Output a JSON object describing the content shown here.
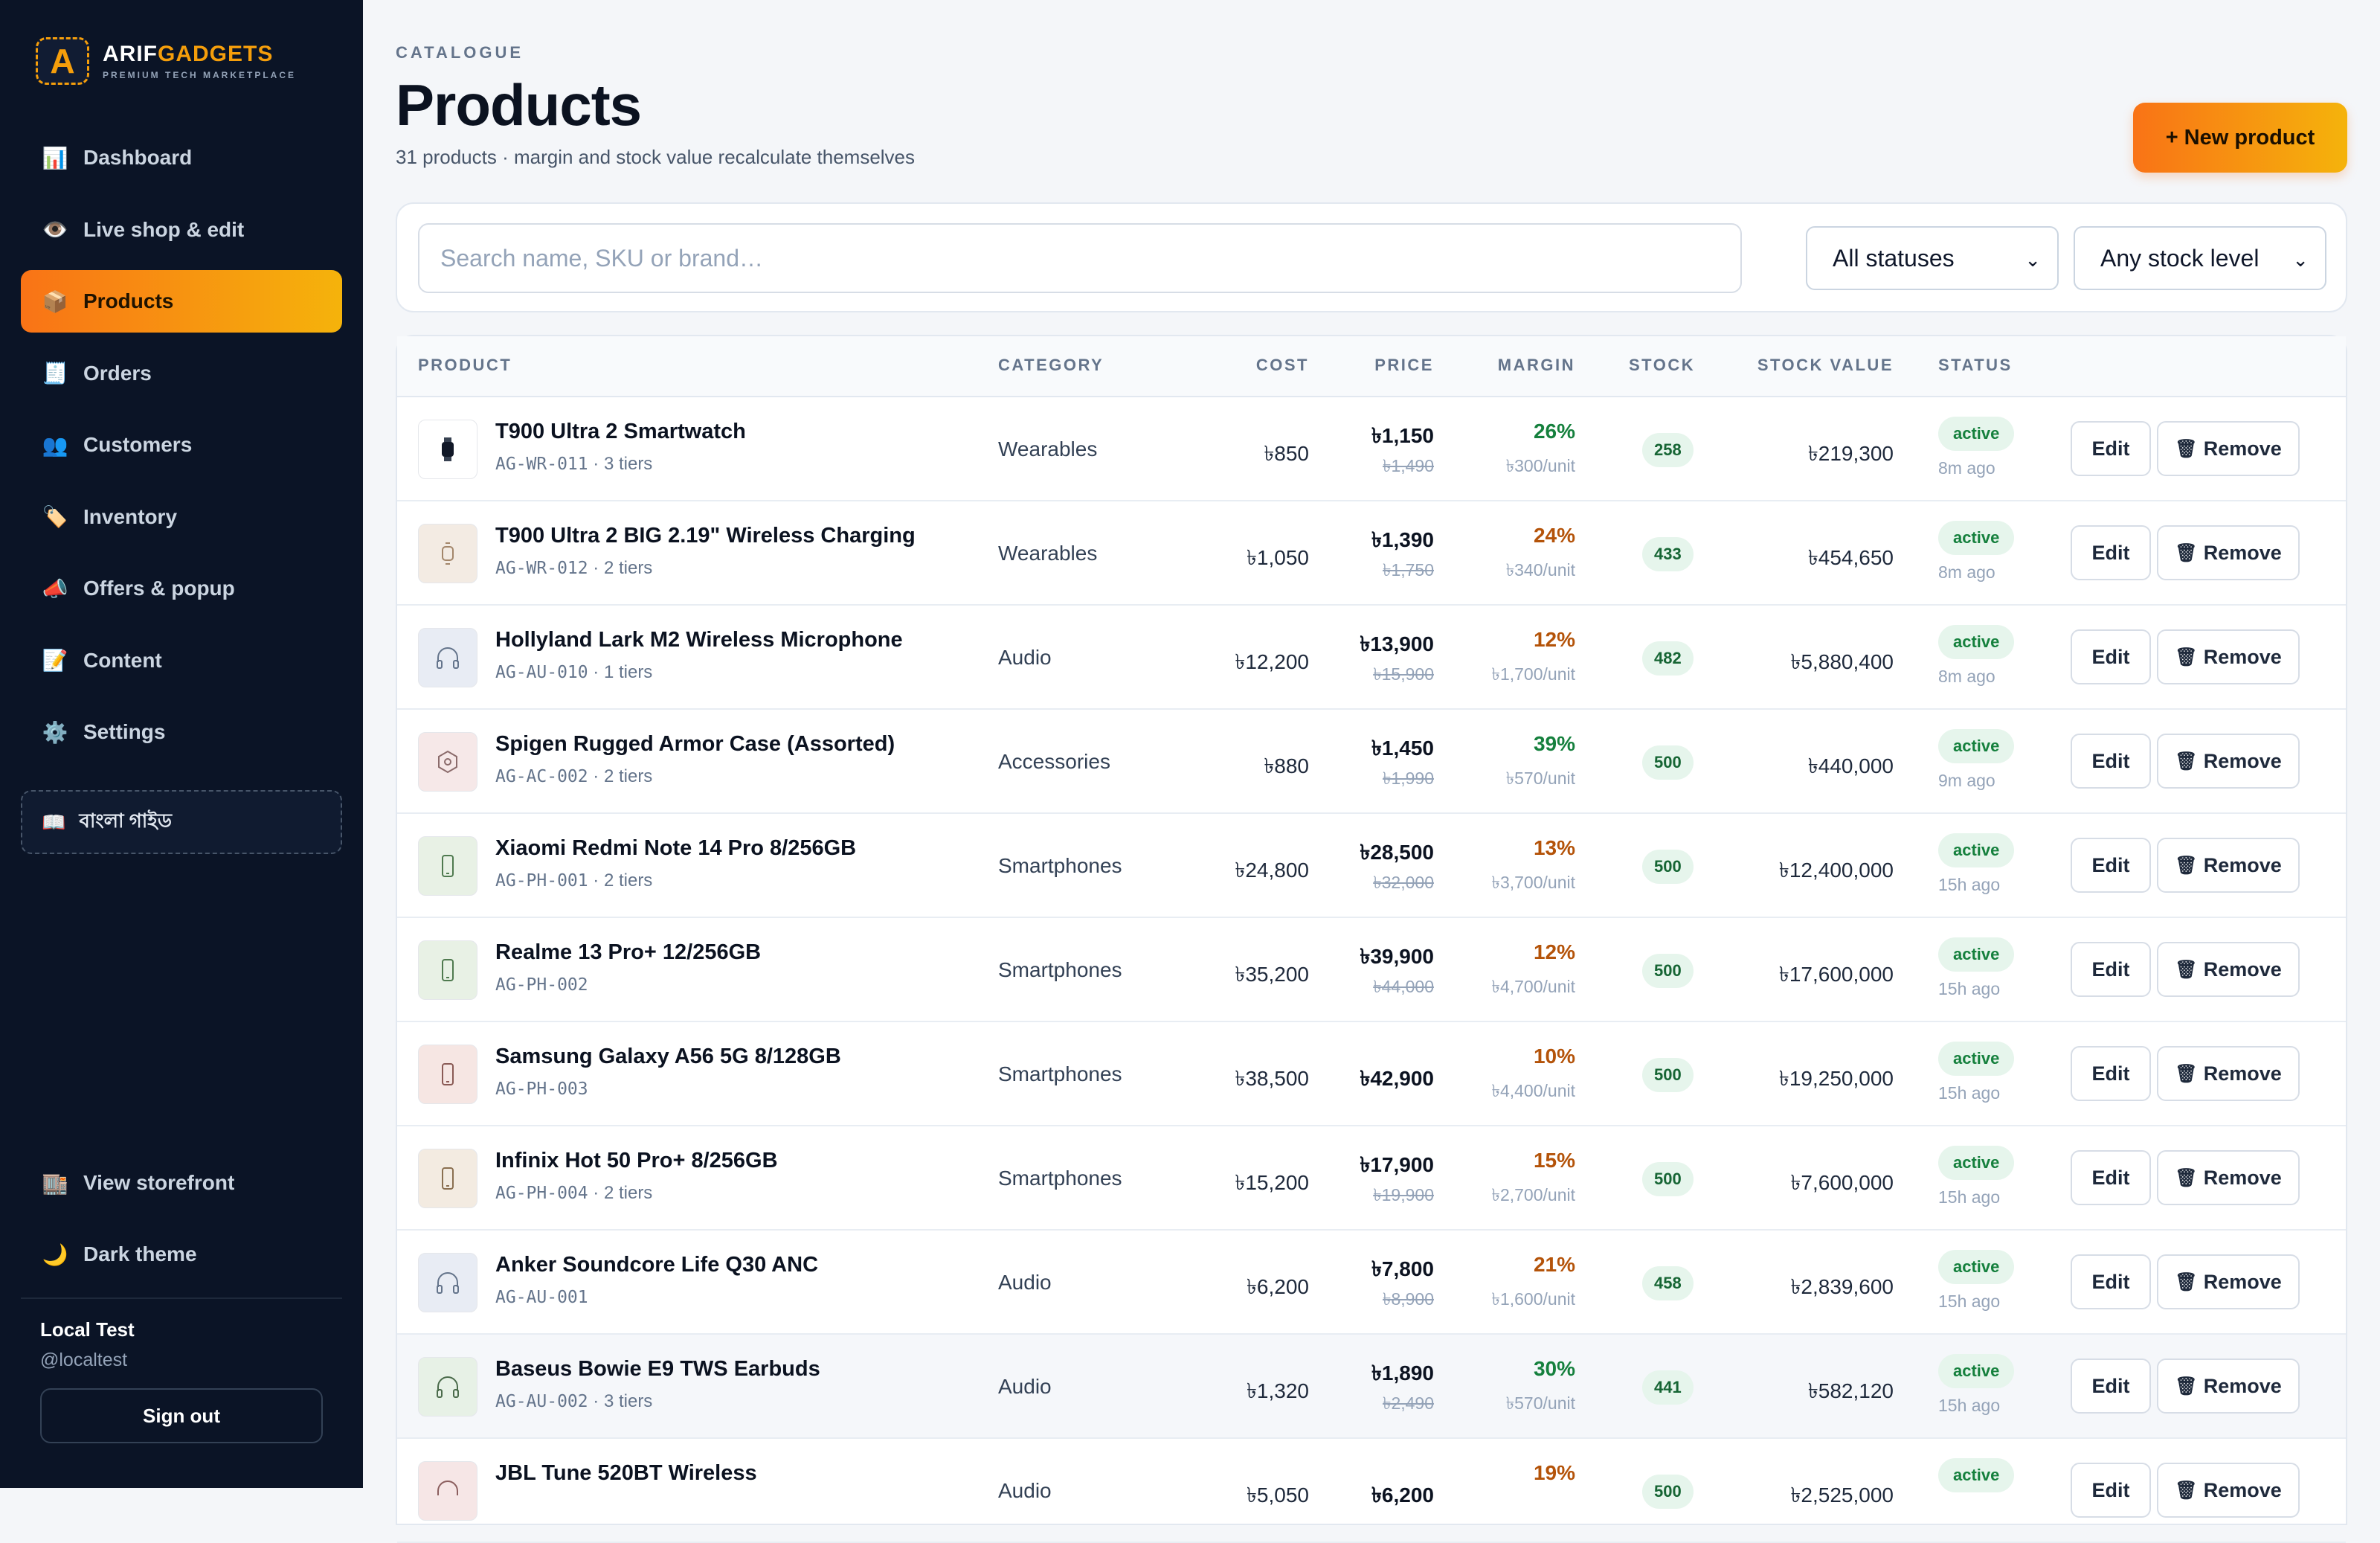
{
  "brand": {
    "name_a": "ARIF",
    "name_b": "GADGETS",
    "tagline": "PREMIUM TECH MARKETPLACE",
    "mark": "A"
  },
  "sidebar": {
    "items": [
      {
        "label": "Dashboard",
        "icon": "bar-chart-icon",
        "glyph": "📊"
      },
      {
        "label": "Live shop & edit",
        "icon": "eye-icon",
        "glyph": "👁️"
      },
      {
        "label": "Products",
        "icon": "package-icon",
        "glyph": "📦"
      },
      {
        "label": "Orders",
        "icon": "receipt-icon",
        "glyph": "🧾"
      },
      {
        "label": "Customers",
        "icon": "users-icon",
        "glyph": "👥"
      },
      {
        "label": "Inventory",
        "icon": "tag-icon",
        "glyph": "🏷️"
      },
      {
        "label": "Offers & popup",
        "icon": "megaphone-icon",
        "glyph": "📣"
      },
      {
        "label": "Content",
        "icon": "memo-icon",
        "glyph": "📝"
      },
      {
        "label": "Settings",
        "icon": "gear-icon",
        "glyph": "⚙️"
      }
    ],
    "guide": {
      "label": "বাংলা গাইড",
      "glyph": "📖"
    },
    "bottom": [
      {
        "label": "View storefront",
        "icon": "storefront-icon",
        "glyph": "🏬"
      },
      {
        "label": "Dark theme",
        "icon": "moon-icon",
        "glyph": "🌙"
      }
    ],
    "user": {
      "name": "Local Test",
      "handle": "@localtest",
      "signout": "Sign out"
    }
  },
  "header": {
    "eyebrow": "CATALOGUE",
    "title": "Products",
    "subtitle": "31 products · margin and stock value recalculate themselves",
    "new_button": "+ New product"
  },
  "filters": {
    "search_placeholder": "Search name, SKU or brand…",
    "status": "All statuses",
    "stock": "Any stock level"
  },
  "table": {
    "columns": [
      "PRODUCT",
      "CATEGORY",
      "COST",
      "PRICE",
      "MARGIN",
      "STOCK",
      "STOCK VALUE",
      "STATUS"
    ],
    "edit_label": "Edit",
    "remove_label": "Remove",
    "rows": [
      {
        "name": "T900 Ultra 2 Smartwatch",
        "sku": "AG-WR-011",
        "tiers": " · 3 tiers",
        "thumb": "watch",
        "category": "Wearables",
        "cost": "৳850",
        "price": "৳1,150",
        "old": "৳1,490",
        "margin": "26%",
        "margin_unit": "৳300/unit",
        "margin_color": "#15803d",
        "stock": "258",
        "stock_value": "৳219,300",
        "status": "active",
        "ago": "8m ago"
      },
      {
        "name": "T900 Ultra 2 BIG 2.19\" Wireless Charging",
        "sku": "AG-WR-012",
        "tiers": " · 2 tiers",
        "thumb": "watch-light",
        "category": "Wearables",
        "cost": "৳1,050",
        "price": "৳1,390",
        "old": "৳1,750",
        "margin": "24%",
        "margin_unit": "৳340/unit",
        "margin_color": "#b45309",
        "stock": "433",
        "stock_value": "৳454,650",
        "status": "active",
        "ago": "8m ago"
      },
      {
        "name": "Hollyland Lark M2 Wireless Microphone",
        "sku": "AG-AU-010",
        "tiers": " · 1 tiers",
        "thumb": "headphones",
        "category": "Audio",
        "cost": "৳12,200",
        "price": "৳13,900",
        "old": "৳15,900",
        "margin": "12%",
        "margin_unit": "৳1,700/unit",
        "margin_color": "#b45309",
        "stock": "482",
        "stock_value": "৳5,880,400",
        "status": "active",
        "ago": "8m ago"
      },
      {
        "name": "Spigen Rugged Armor Case (Assorted)",
        "sku": "AG-AC-002",
        "tiers": " · 2 tiers",
        "thumb": "hexagon",
        "category": "Accessories",
        "cost": "৳880",
        "price": "৳1,450",
        "old": "৳1,990",
        "margin": "39%",
        "margin_unit": "৳570/unit",
        "margin_color": "#15803d",
        "stock": "500",
        "stock_value": "৳440,000",
        "status": "active",
        "ago": "9m ago"
      },
      {
        "name": "Xiaomi Redmi Note 14 Pro 8/256GB",
        "sku": "AG-PH-001",
        "tiers": " · 2 tiers",
        "thumb": "phone-green",
        "category": "Smartphones",
        "cost": "৳24,800",
        "price": "৳28,500",
        "old": "৳32,000",
        "margin": "13%",
        "margin_unit": "৳3,700/unit",
        "margin_color": "#b45309",
        "stock": "500",
        "stock_value": "৳12,400,000",
        "status": "active",
        "ago": "15h ago"
      },
      {
        "name": "Realme 13 Pro+ 12/256GB",
        "sku": "AG-PH-002",
        "tiers": "",
        "thumb": "phone-green",
        "category": "Smartphones",
        "cost": "৳35,200",
        "price": "৳39,900",
        "old": "৳44,000",
        "margin": "12%",
        "margin_unit": "৳4,700/unit",
        "margin_color": "#b45309",
        "stock": "500",
        "stock_value": "৳17,600,000",
        "status": "active",
        "ago": "15h ago"
      },
      {
        "name": "Samsung Galaxy A56 5G 8/128GB",
        "sku": "AG-PH-003",
        "tiers": "",
        "thumb": "phone-pink",
        "category": "Smartphones",
        "cost": "৳38,500",
        "price": "৳42,900",
        "old": "",
        "margin": "10%",
        "margin_unit": "৳4,400/unit",
        "margin_color": "#b45309",
        "stock": "500",
        "stock_value": "৳19,250,000",
        "status": "active",
        "ago": "15h ago"
      },
      {
        "name": "Infinix Hot 50 Pro+ 8/256GB",
        "sku": "AG-PH-004",
        "tiers": " · 2 tiers",
        "thumb": "phone-tan",
        "category": "Smartphones",
        "cost": "৳15,200",
        "price": "৳17,900",
        "old": "৳19,900",
        "margin": "15%",
        "margin_unit": "৳2,700/unit",
        "margin_color": "#b45309",
        "stock": "500",
        "stock_value": "৳7,600,000",
        "status": "active",
        "ago": "15h ago"
      },
      {
        "name": "Anker Soundcore Life Q30 ANC",
        "sku": "AG-AU-001",
        "tiers": "",
        "thumb": "headphones",
        "category": "Audio",
        "cost": "৳6,200",
        "price": "৳7,800",
        "old": "৳8,900",
        "margin": "21%",
        "margin_unit": "৳1,600/unit",
        "margin_color": "#b45309",
        "stock": "458",
        "stock_value": "৳2,839,600",
        "status": "active",
        "ago": "15h ago"
      },
      {
        "name": "Baseus Bowie E9 TWS Earbuds",
        "sku": "AG-AU-002",
        "tiers": " · 3 tiers",
        "thumb": "headphones-green",
        "category": "Audio",
        "cost": "৳1,320",
        "price": "৳1,890",
        "old": "৳2,490",
        "margin": "30%",
        "margin_unit": "৳570/unit",
        "margin_color": "#15803d",
        "stock": "441",
        "stock_value": "৳582,120",
        "status": "active",
        "ago": "15h ago",
        "hover": true
      },
      {
        "name": "JBL Tune 520BT Wireless",
        "sku": "",
        "tiers": "",
        "thumb": "headphones-pink",
        "category": "Audio",
        "cost": "৳5,050",
        "price": "৳6,200",
        "old": "",
        "margin": "19%",
        "margin_unit": "",
        "margin_color": "#b45309",
        "stock": "500",
        "stock_value": "৳2,525,000",
        "status": "active",
        "ago": ""
      }
    ]
  }
}
